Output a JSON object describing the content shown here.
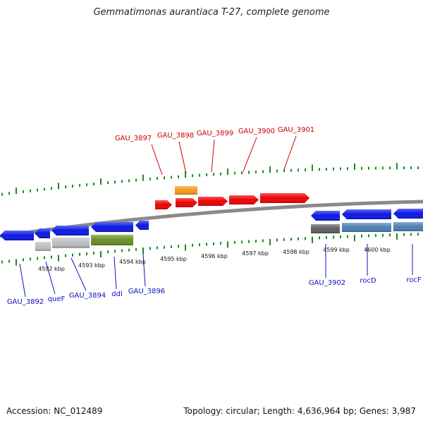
{
  "title": "Gemmatimonas aurantiaca T-27, complete genome",
  "footer": {
    "accession": "Accession: NC_012489",
    "topology": "Topology: circular; Length: 4,636,964 bp; Genes: 3,987"
  },
  "colors": {
    "backbone": "#8a8a8a",
    "tick": "#1e8a1e",
    "red_gene": "#ee0000",
    "blue_gene": "#0a16e6",
    "orange_gene": "#f59a1a",
    "olive_gene": "#6b8e23",
    "gray_gene": "#bdbdbd",
    "dark_gray_gene": "#5e5e5e",
    "steel_gene": "#4d7fb4",
    "red_label": "#cc0000",
    "blue_label": "#1010c0"
  },
  "scale_labels": [
    "4592 kbp",
    "4593 kbp",
    "4594 kbp",
    "4595 kbp",
    "4596 kbp",
    "4597 kbp",
    "4598 kbp",
    "4599 kbp",
    "4600 kbp"
  ],
  "top_labels": [
    "GAU_3897",
    "GAU_3898",
    "GAU_3899",
    "GAU_3900",
    "GAU_3901"
  ],
  "bottom_labels": [
    "GAU_3892",
    "queF",
    "GAU_3894",
    "ddl",
    "GAU_3896",
    "GAU_3902",
    "rocD",
    "rocF"
  ]
}
